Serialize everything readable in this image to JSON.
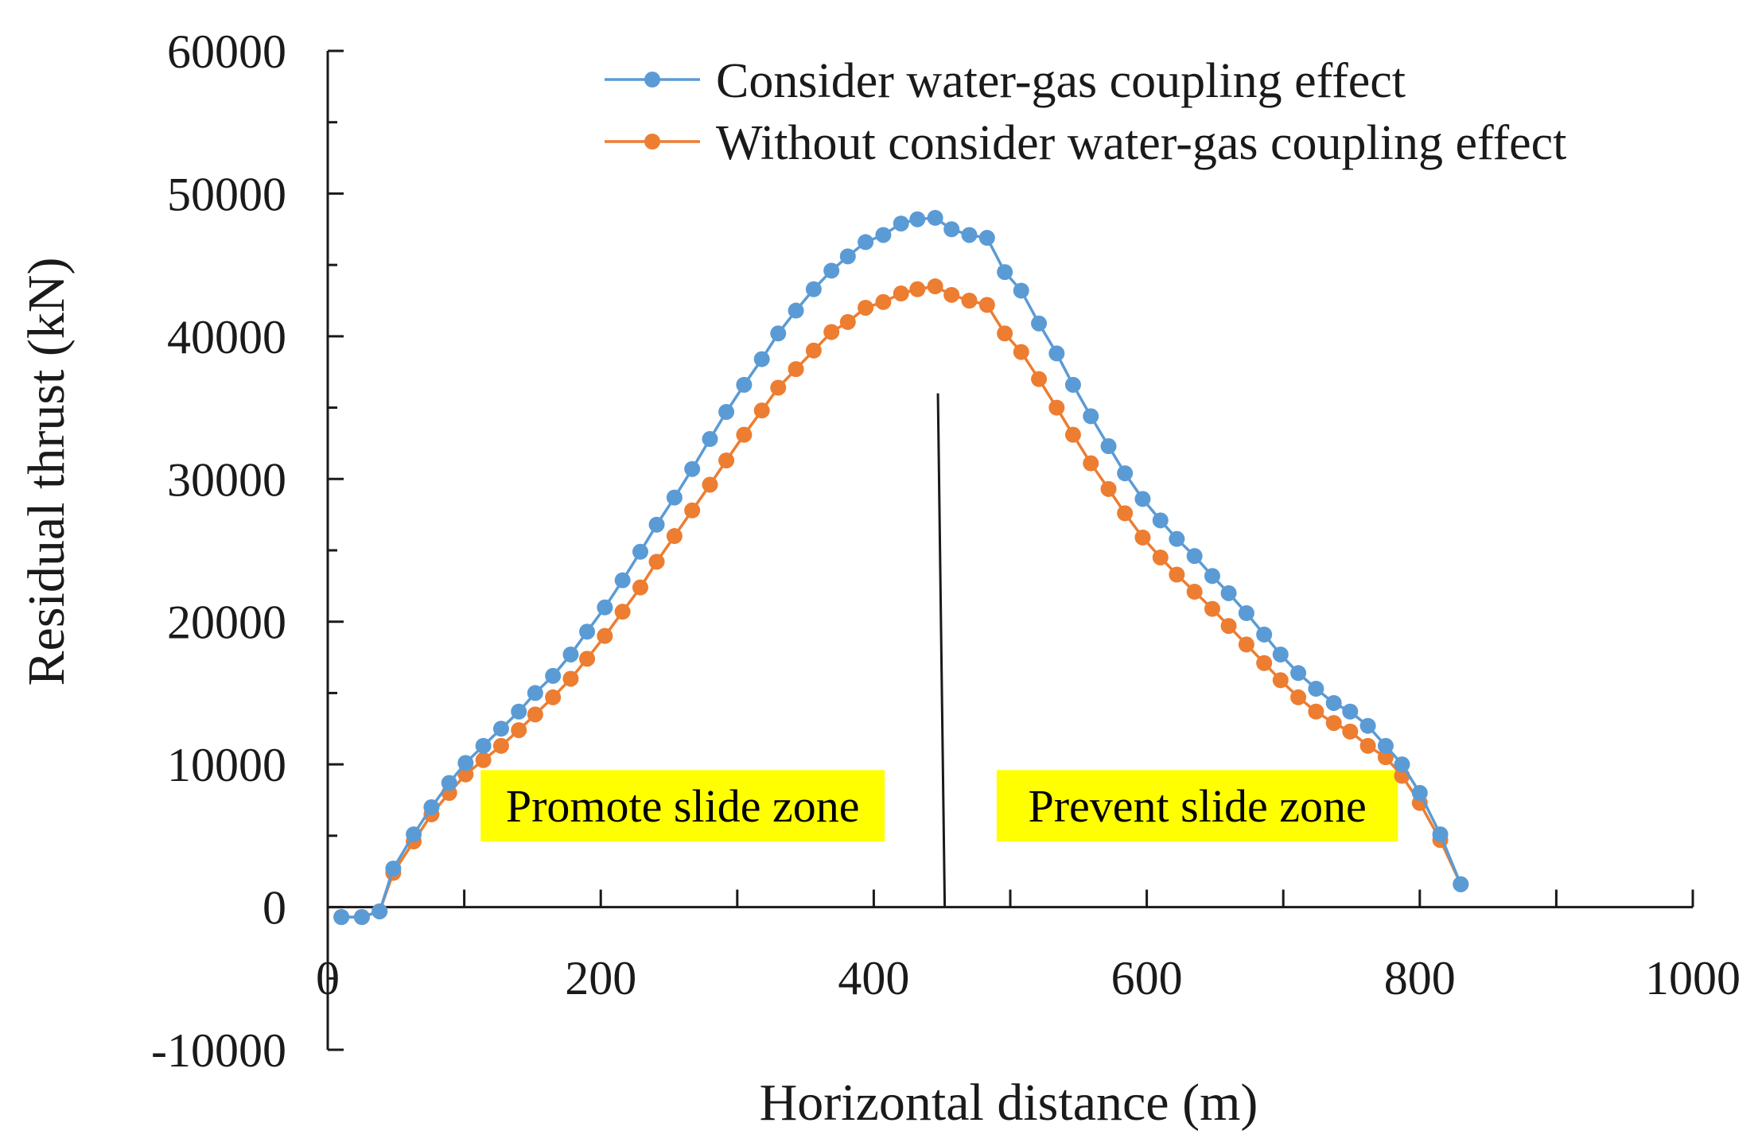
{
  "chart_data": {
    "type": "line",
    "title": "",
    "xlabel": "Horizontal distance (m)",
    "ylabel": "Residual thrust (kN)",
    "xlim": [
      0,
      1000
    ],
    "ylim": [
      -10000,
      60000
    ],
    "x_ticks": [
      0,
      200,
      400,
      600,
      800,
      1000
    ],
    "x_tick_labels": [
      "0",
      "200",
      "400",
      "600",
      "800",
      "1000"
    ],
    "y_ticks": [
      -10000,
      0,
      10000,
      20000,
      30000,
      40000,
      50000,
      60000
    ],
    "y_tick_labels": [
      "-10000",
      "0",
      "10000",
      "20000",
      "30000",
      "40000",
      "50000",
      "60000"
    ],
    "grid": false,
    "legend_position": "top-right",
    "x": [
      10,
      25,
      38,
      48,
      63,
      76,
      89,
      101,
      114,
      127,
      140,
      152,
      165,
      178,
      190,
      203,
      216,
      229,
      241,
      254,
      267,
      280,
      292,
      305,
      318,
      330,
      343,
      356,
      369,
      381,
      394,
      407,
      420,
      432,
      445,
      457,
      470,
      483,
      496,
      508,
      521,
      534,
      546,
      559,
      572,
      584,
      597,
      610,
      622,
      635,
      648,
      660,
      673,
      686,
      698,
      711,
      724,
      737,
      749,
      762,
      775,
      787,
      800,
      815,
      830
    ],
    "series": [
      {
        "name": "Consider water-gas coupling effect",
        "color": "#5b9bd5",
        "values": [
          -700,
          -700,
          -300,
          2700,
          5100,
          7000,
          8700,
          10100,
          11300,
          12500,
          13700,
          15000,
          16200,
          17700,
          19300,
          21000,
          22900,
          24900,
          26800,
          28700,
          30700,
          32800,
          34700,
          36600,
          38400,
          40200,
          41800,
          43300,
          44600,
          45600,
          46600,
          47100,
          47900,
          48200,
          48300,
          47500,
          47100,
          46900,
          44500,
          43200,
          40900,
          38800,
          36600,
          34400,
          32300,
          30400,
          28600,
          27100,
          25800,
          24600,
          23200,
          22000,
          20600,
          19100,
          17700,
          16400,
          15300,
          14300,
          13700,
          12700,
          11300,
          10000,
          8000,
          5100,
          1600
        ]
      },
      {
        "name": "Without consider water-gas coupling effect",
        "color": "#ed7d31",
        "values": [
          -700,
          -700,
          -300,
          2400,
          4600,
          6500,
          8000,
          9300,
          10300,
          11300,
          12400,
          13500,
          14700,
          16000,
          17400,
          19000,
          20700,
          22400,
          24200,
          26000,
          27800,
          29600,
          31300,
          33100,
          34800,
          36400,
          37700,
          39000,
          40300,
          41000,
          42000,
          42400,
          43000,
          43300,
          43500,
          42900,
          42500,
          42200,
          40200,
          38900,
          37000,
          35000,
          33100,
          31100,
          29300,
          27600,
          25900,
          24500,
          23300,
          22100,
          20900,
          19700,
          18400,
          17100,
          15900,
          14700,
          13700,
          12900,
          12300,
          11300,
          10500,
          9200,
          7300,
          4700,
          1600
        ]
      }
    ],
    "annotations": [
      {
        "text": "Promote slide zone",
        "x_range": [
          112,
          408
        ],
        "y_range": [
          4600,
          9600
        ],
        "highlight": "#ffff00"
      },
      {
        "text": "Prevent slide zone",
        "x_range": [
          490,
          784
        ],
        "y_range": [
          4600,
          9600
        ],
        "highlight": "#ffff00"
      }
    ],
    "divider": {
      "x_start": 447,
      "y_start": 36000,
      "x_end": 452,
      "y_end": 0
    }
  }
}
